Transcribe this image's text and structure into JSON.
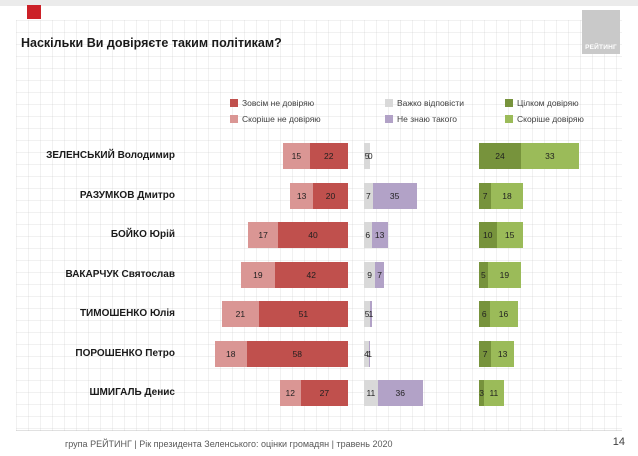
{
  "title": "Наскільки Ви довіряєте таким політикам?",
  "logo": {
    "text": "РЕЙТИНГ"
  },
  "legend": {
    "items": [
      {
        "label": "Зовсім не довіряю",
        "color": "#C0504D"
      },
      {
        "label": "Скоріше не довіряю",
        "color": "#DA9694"
      },
      {
        "label": "Важко відповісти",
        "color": "#D9D9D9"
      },
      {
        "label": "Не знаю такого",
        "color": "#B2A2C7"
      },
      {
        "label": "Цілком довіряю",
        "color": "#77933C"
      },
      {
        "label": "Скоріше довіряю",
        "color": "#9BBB59"
      }
    ]
  },
  "chart_data": {
    "type": "bar",
    "variant": "diverging-stacked-horizontal",
    "unit": "%",
    "title": "Наскільки Ви довіряєте таким політикам?",
    "categories": [
      "ЗЕЛЕНСЬКИЙ Володимир",
      "РАЗУМКОВ Дмитро",
      "БОЙКО Юрій",
      "ВАКАРЧУК Святослав",
      "ТИМОШЕНКО Юлія",
      "ПОРОШЕНКО Петро",
      "ШМИГАЛЬ Денис"
    ],
    "series": [
      {
        "name": "Зовсім не довіряю",
        "color": "#C0504D",
        "values": [
          22,
          20,
          40,
          42,
          51,
          58,
          27
        ]
      },
      {
        "name": "Скоріше не довіряю",
        "color": "#DA9694",
        "values": [
          15,
          13,
          17,
          19,
          21,
          18,
          12
        ]
      },
      {
        "name": "Важко відповісти",
        "color": "#D9D9D9",
        "values": [
          5,
          7,
          6,
          9,
          5,
          4,
          11
        ]
      },
      {
        "name": "Не знаю такого",
        "color": "#B2A2C7",
        "values": [
          0,
          35,
          13,
          7,
          1,
          1,
          36
        ]
      },
      {
        "name": "Цілком довіряю",
        "color": "#77933C",
        "values": [
          24,
          7,
          10,
          5,
          6,
          7,
          3
        ]
      },
      {
        "name": "Скоріше довіряю",
        "color": "#9BBB59",
        "values": [
          33,
          18,
          15,
          19,
          16,
          13,
          11
        ]
      }
    ],
    "legend_position": "top",
    "grid": "faint-square-paper",
    "value_labels": "inside-segments"
  },
  "footer": {
    "caption": "група РЕЙТИНГ |  Рік президента Зеленського: оцінки громадян | травень 2020",
    "page_number": "14"
  }
}
